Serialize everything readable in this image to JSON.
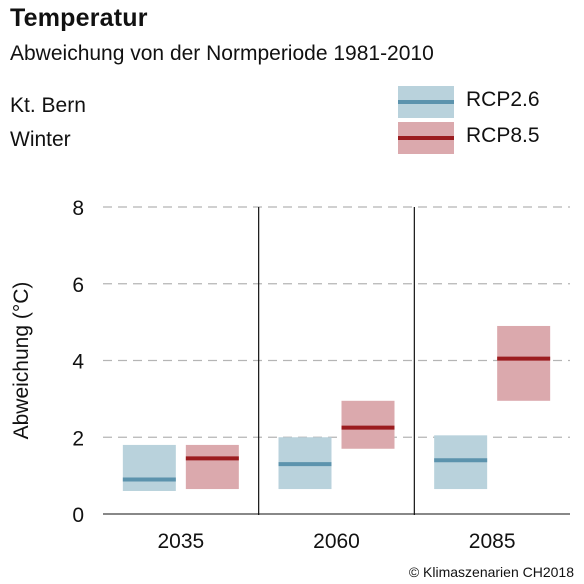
{
  "header": {
    "title": "Temperatur",
    "subtitle": "Abweichung von der Normperiode 1981-2010",
    "region": "Kt. Bern",
    "season": "Winter"
  },
  "legend": [
    {
      "label": "RCP2.6",
      "fill": "#b9d2dc",
      "line": "#5c93ad"
    },
    {
      "label": "RCP8.5",
      "fill": "#dba9ad",
      "line": "#9b1c1f"
    }
  ],
  "copyright": "© Klimaszenarien CH2018",
  "chart_data": {
    "type": "bar",
    "ylabel": "Abweichung (°C)",
    "xlabel": "",
    "ylim": [
      0,
      8
    ],
    "yticks": [
      0,
      2,
      4,
      6,
      8
    ],
    "grid": true,
    "legend_position": "top-right",
    "categories": [
      "2035",
      "2060",
      "2085"
    ],
    "series": [
      {
        "name": "RCP2.6",
        "color_fill": "#b9d2dc",
        "color_line": "#5c93ad",
        "low": [
          0.6,
          0.65,
          0.65
        ],
        "median": [
          0.9,
          1.3,
          1.4
        ],
        "high": [
          1.8,
          2.0,
          2.05
        ]
      },
      {
        "name": "RCP8.5",
        "color_fill": "#dba9ad",
        "color_line": "#9b1c1f",
        "low": [
          0.65,
          1.7,
          2.95
        ],
        "median": [
          1.45,
          2.25,
          4.05
        ],
        "high": [
          1.8,
          2.95,
          4.9
        ]
      }
    ]
  }
}
